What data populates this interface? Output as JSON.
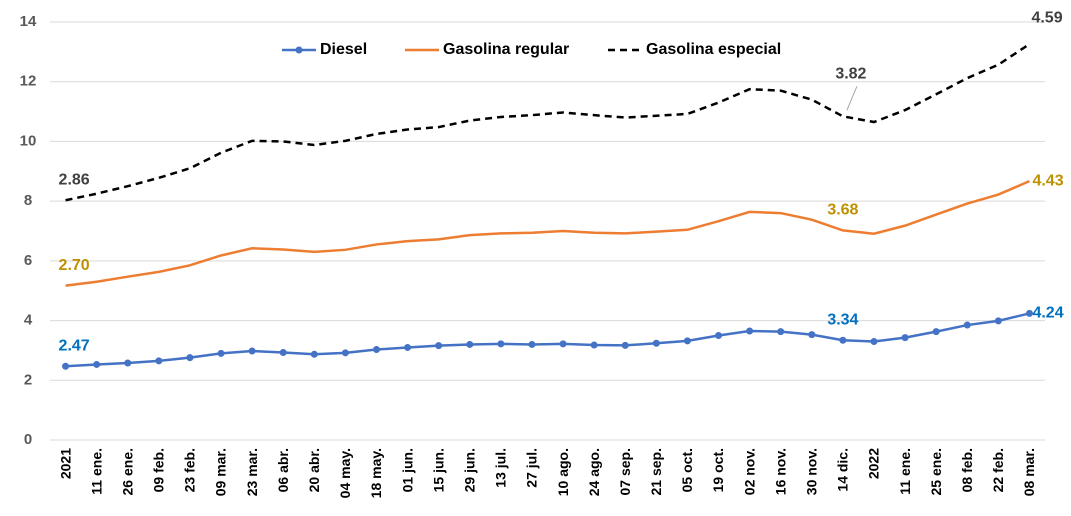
{
  "chart_data": {
    "type": "line",
    "stacked": true,
    "categories": [
      "2021",
      "11 ene.",
      "26 ene.",
      "09 feb.",
      "23 feb.",
      "09 mar.",
      "23 mar.",
      "06 abr.",
      "20 abr.",
      "04 may.",
      "18 may.",
      "01 jun.",
      "15 jun.",
      "29 jun.",
      "13 jul.",
      "27 jul.",
      "10 ago.",
      "24 ago.",
      "07 sep.",
      "21 sep.",
      "05 oct.",
      "19 oct.",
      "02 nov.",
      "16 nov.",
      "30 nov.",
      "14 dic.",
      "2022",
      "11 ene.",
      "25 ene.",
      "08 feb.",
      "22 feb.",
      "08 mar."
    ],
    "series": [
      {
        "name": "Diesel",
        "color": "#4472c4",
        "label_color": "#0070c0",
        "marker": true,
        "dashed": false,
        "values": [
          2.47,
          2.53,
          2.58,
          2.65,
          2.76,
          2.9,
          2.98,
          2.93,
          2.87,
          2.92,
          3.03,
          3.1,
          3.16,
          3.2,
          3.22,
          3.2,
          3.22,
          3.18,
          3.17,
          3.24,
          3.32,
          3.5,
          3.65,
          3.63,
          3.53,
          3.34,
          3.3,
          3.43,
          3.63,
          3.85,
          3.99,
          4.24
        ],
        "value_labels": [
          "2.47",
          null,
          null,
          null,
          null,
          null,
          null,
          null,
          null,
          null,
          null,
          null,
          null,
          null,
          null,
          null,
          null,
          null,
          null,
          null,
          null,
          null,
          null,
          null,
          null,
          "3.34",
          null,
          null,
          null,
          null,
          null,
          "4.24"
        ]
      },
      {
        "name": "Gasolina regular",
        "color": "#ed7d31",
        "label_color": "#bf9000",
        "marker": false,
        "dashed": false,
        "values": [
          2.7,
          2.77,
          2.89,
          2.98,
          3.09,
          3.28,
          3.44,
          3.45,
          3.43,
          3.45,
          3.52,
          3.56,
          3.56,
          3.66,
          3.7,
          3.74,
          3.78,
          3.76,
          3.75,
          3.74,
          3.72,
          3.83,
          3.99,
          3.97,
          3.85,
          3.68,
          3.61,
          3.75,
          3.92,
          4.07,
          4.23,
          4.43
        ],
        "value_labels": [
          "2.70",
          null,
          null,
          null,
          null,
          null,
          null,
          null,
          null,
          null,
          null,
          null,
          null,
          null,
          null,
          null,
          null,
          null,
          null,
          null,
          null,
          null,
          null,
          null,
          null,
          "3.68",
          null,
          null,
          null,
          null,
          null,
          "4.43"
        ]
      },
      {
        "name": "Gasolina especial",
        "color": "#000000",
        "label_color": "#404040",
        "marker": false,
        "dashed": true,
        "values": [
          2.86,
          2.95,
          3.03,
          3.15,
          3.25,
          3.44,
          3.6,
          3.62,
          3.58,
          3.65,
          3.7,
          3.74,
          3.76,
          3.84,
          3.9,
          3.94,
          3.97,
          3.94,
          3.88,
          3.88,
          3.88,
          3.97,
          4.11,
          4.1,
          4.02,
          3.82,
          3.74,
          3.87,
          4.03,
          4.2,
          4.35,
          4.59
        ],
        "value_labels": [
          "2.86",
          null,
          null,
          null,
          null,
          null,
          null,
          null,
          null,
          null,
          null,
          null,
          null,
          null,
          null,
          null,
          null,
          null,
          null,
          null,
          null,
          null,
          null,
          null,
          null,
          "3.82",
          null,
          null,
          null,
          null,
          null,
          "4.59"
        ]
      }
    ],
    "ylim": [
      0,
      14
    ],
    "yticks": [
      0,
      2,
      4,
      6,
      8,
      10,
      12,
      14
    ],
    "grid": true,
    "legend": "top"
  }
}
